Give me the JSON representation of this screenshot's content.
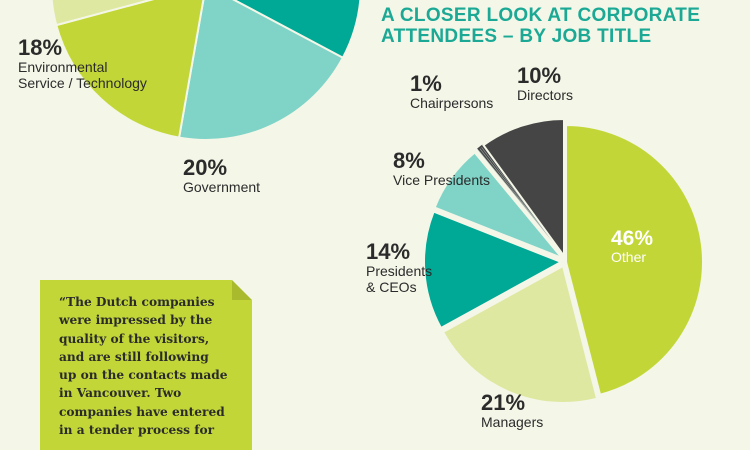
{
  "chart_data": [
    {
      "type": "pie",
      "title": "",
      "slices": [
        {
          "label": "Environmental Service / Technology",
          "value": 18,
          "pct_label": "18%",
          "color": "#c2d737"
        },
        {
          "label": "Government",
          "value": 20,
          "pct_label": "20%",
          "color": "#7fd3c7"
        }
      ],
      "colors": {
        "teal": "#00a896",
        "lime": "#c2d737",
        "light_teal": "#7fd3c7",
        "pale_lime": "#dfe8a0"
      }
    },
    {
      "type": "pie",
      "title": "A CLOSER LOOK AT CORPORATE ATTENDEES – BY JOB TITLE",
      "slices": [
        {
          "label": "Other",
          "value": 46,
          "pct_label": "46%",
          "color": "#c2d737"
        },
        {
          "label": "Managers",
          "value": 21,
          "pct_label": "21%",
          "color": "#dfe8a0"
        },
        {
          "label": "Presidents & CEOs",
          "value": 14,
          "pct_label": "14%",
          "color": "#00a896"
        },
        {
          "label": "Vice Presidents",
          "value": 8,
          "pct_label": "8%",
          "color": "#7fd3c7"
        },
        {
          "label": "Chairpersons",
          "value": 1,
          "pct_label": "1%",
          "color": "#454545"
        },
        {
          "label": "Directors",
          "value": 10,
          "pct_label": "10%",
          "color": "#454545"
        }
      ]
    }
  ],
  "labels": {
    "env_pct": "18%",
    "env_name_line1": "Environmental",
    "env_name_line2": "Service / Technology",
    "gov_pct": "20%",
    "gov_name": "Government",
    "title_line1": "A CLOSER LOOK AT CORPORATE",
    "title_line2": "ATTENDEES – BY JOB TITLE",
    "chair_pct": "1%",
    "chair_name": "Chairpersons",
    "dir_pct": "10%",
    "dir_name": "Directors",
    "vp_pct": "8%",
    "vp_name": "Vice Presidents",
    "pres_pct": "14%",
    "pres_name_line1": "Presidents",
    "pres_name_line2": "& CEOs",
    "other_pct": "46%",
    "other_name": "Other",
    "mgr_pct": "21%",
    "mgr_name": "Managers"
  },
  "quote": {
    "lines": [
      "“The Dutch companies",
      "were impressed by the",
      "quality of the visitors,",
      "and are still following",
      "up on the contacts made",
      "in Vancouver. Two",
      "companies have entered",
      "in a tender process for"
    ]
  }
}
